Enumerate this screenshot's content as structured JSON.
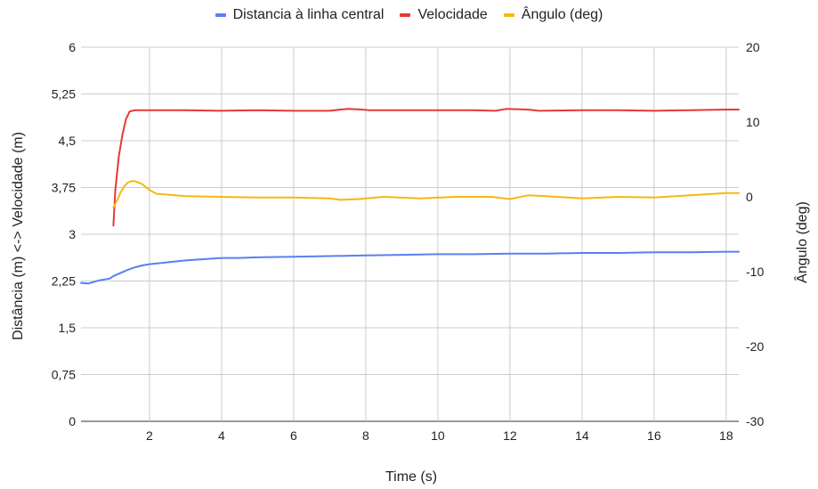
{
  "chart_data": {
    "type": "line",
    "xlabel": "Time (s)",
    "ylabel_left": "Distância (m) <-> Velocidade (m)",
    "ylabel_right": "Ângulo (deg)",
    "xlim": [
      0.1,
      18.35
    ],
    "ylim_left": [
      0,
      6
    ],
    "ylim_right": [
      -30,
      20
    ],
    "x_ticks": [
      "2",
      "4",
      "6",
      "8",
      "10",
      "12",
      "14",
      "16",
      "18"
    ],
    "y_ticks_left": [
      "0",
      "0,75",
      "1,5",
      "2,25",
      "3",
      "3,75",
      "4,5",
      "5,25",
      "6"
    ],
    "y_ticks_right": [
      "-30",
      "-20",
      "-10",
      "0",
      "10",
      "20"
    ],
    "grid": true,
    "legend_position": "top",
    "series": [
      {
        "name": "Distancia à linha central",
        "axis": "left",
        "color": "#5b7ff0",
        "x": [
          0.1,
          0.3,
          0.6,
          0.9,
          1.0,
          1.2,
          1.4,
          1.6,
          1.8,
          2.0,
          2.5,
          3.0,
          3.5,
          4.0,
          4.5,
          5.0,
          6.0,
          7.0,
          8.0,
          9.0,
          10.0,
          11.0,
          12.0,
          13.0,
          14.0,
          15.0,
          16.0,
          17.0,
          18.0,
          18.35
        ],
        "y": [
          2.22,
          2.21,
          2.26,
          2.29,
          2.33,
          2.38,
          2.43,
          2.47,
          2.5,
          2.52,
          2.55,
          2.58,
          2.6,
          2.62,
          2.62,
          2.63,
          2.64,
          2.65,
          2.66,
          2.67,
          2.68,
          2.68,
          2.69,
          2.69,
          2.7,
          2.7,
          2.71,
          2.71,
          2.72,
          2.72
        ]
      },
      {
        "name": "Velocidade",
        "axis": "left",
        "color": "#e53935",
        "x": [
          1.0,
          1.05,
          1.15,
          1.25,
          1.35,
          1.45,
          1.6,
          2.0,
          3.0,
          4.0,
          5.0,
          6.0,
          7.0,
          7.3,
          7.5,
          7.9,
          8.1,
          9.0,
          10.0,
          11.0,
          11.6,
          11.9,
          12.5,
          12.8,
          14.0,
          15.0,
          16.0,
          17.0,
          18.0,
          18.35
        ],
        "y": [
          3.14,
          3.7,
          4.25,
          4.6,
          4.85,
          4.97,
          4.99,
          4.99,
          4.99,
          4.98,
          4.99,
          4.98,
          4.98,
          5.0,
          5.01,
          5.0,
          4.99,
          4.99,
          4.99,
          4.99,
          4.98,
          5.01,
          5.0,
          4.98,
          4.99,
          4.99,
          4.98,
          4.99,
          5.0,
          5.0
        ]
      },
      {
        "name": "Ângulo (deg)",
        "axis": "right",
        "color": "#f5b90f",
        "x": [
          1.0,
          1.1,
          1.2,
          1.3,
          1.4,
          1.5,
          1.6,
          1.8,
          2.0,
          2.2,
          2.5,
          3.0,
          4.0,
          5.0,
          6.0,
          7.0,
          7.3,
          7.8,
          8.5,
          9.5,
          10.5,
          11.5,
          12.0,
          12.5,
          13.0,
          14.0,
          15.0,
          16.0,
          17.0,
          18.0,
          18.35
        ],
        "y": [
          -1.4,
          -0.5,
          0.6,
          1.4,
          1.9,
          2.1,
          2.1,
          1.7,
          0.9,
          0.4,
          0.3,
          0.1,
          0.0,
          -0.1,
          -0.1,
          -0.2,
          -0.4,
          -0.3,
          0.0,
          -0.2,
          0.0,
          0.0,
          -0.3,
          0.2,
          0.1,
          -0.2,
          0.0,
          -0.1,
          0.2,
          0.5,
          0.5
        ]
      }
    ]
  }
}
